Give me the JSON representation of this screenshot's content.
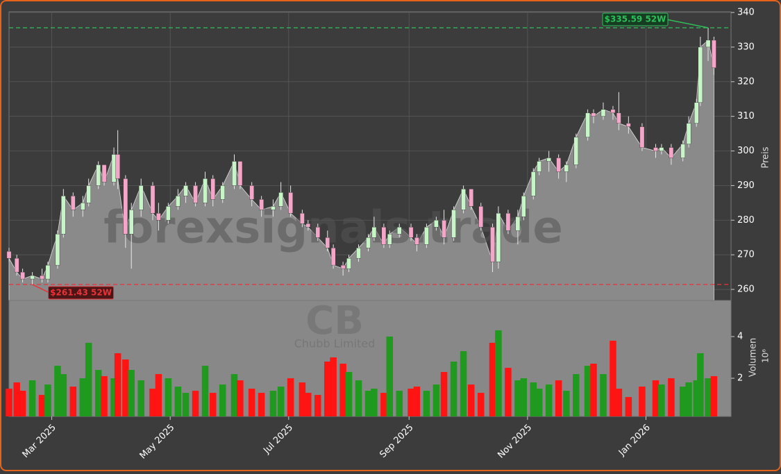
{
  "chart_data": {
    "type": "candlestick",
    "watermark": "forexsignals.trade",
    "symbol": "CB",
    "company": "Chubb Limited",
    "ylabel": "Preis",
    "y2label": "Volumen",
    "y2multiplier": "10⁶",
    "up_color": "#c8f5c8",
    "down_color": "#f4a6c8",
    "volume_up_color": "#1f9a1f",
    "volume_down_color": "#ff1414",
    "grid": true,
    "xlim": [
      "2025-02-07",
      "2026-02-12"
    ],
    "xticks": [
      {
        "value": "2025-03-01",
        "label": "Mar 2025"
      },
      {
        "value": "2025-05-01",
        "label": "May 2025"
      },
      {
        "value": "2025-07-01",
        "label": "Jul 2025"
      },
      {
        "value": "2025-09-01",
        "label": "Sep 2025"
      },
      {
        "value": "2025-11-01",
        "label": "Nov 2025"
      },
      {
        "value": "2026-01-01",
        "label": "Jan 2026"
      }
    ],
    "ylim": [
      256.8,
      340.2
    ],
    "yticks": [
      260,
      270,
      280,
      290,
      300,
      310,
      320,
      330,
      340
    ],
    "y2lim": [
      0.17,
      5.73
    ],
    "y2ticks": [
      2,
      4
    ],
    "annotations": [
      {
        "text": "$335.59 52W",
        "value": 335.59,
        "x": "2026-02-02",
        "color": "#2fbf5a"
      },
      {
        "text": "$261.43 52W",
        "value": 261.43,
        "x": "2025-02-19",
        "color": "#e8333a"
      }
    ],
    "x": [
      "2025-02-07",
      "2025-02-11",
      "2025-02-14",
      "2025-02-19",
      "2025-02-24",
      "2025-02-27",
      "2025-03-04",
      "2025-03-07",
      "2025-03-12",
      "2025-03-17",
      "2025-03-20",
      "2025-03-25",
      "2025-03-28",
      "2025-04-02",
      "2025-04-04",
      "2025-04-08",
      "2025-04-11",
      "2025-04-16",
      "2025-04-22",
      "2025-04-25",
      "2025-04-30",
      "2025-05-05",
      "2025-05-09",
      "2025-05-14",
      "2025-05-19",
      "2025-05-23",
      "2025-05-28",
      "2025-06-03",
      "2025-06-06",
      "2025-06-12",
      "2025-06-17",
      "2025-06-23",
      "2025-06-27",
      "2025-07-02",
      "2025-07-08",
      "2025-07-11",
      "2025-07-16",
      "2025-07-21",
      "2025-07-24",
      "2025-07-29",
      "2025-08-01",
      "2025-08-06",
      "2025-08-11",
      "2025-08-14",
      "2025-08-19",
      "2025-08-22",
      "2025-08-27",
      "2025-09-02",
      "2025-09-05",
      "2025-09-10",
      "2025-09-15",
      "2025-09-19",
      "2025-09-24",
      "2025-09-29",
      "2025-10-03",
      "2025-10-08",
      "2025-10-14",
      "2025-10-17",
      "2025-10-22",
      "2025-10-27",
      "2025-10-30",
      "2025-11-04",
      "2025-11-07",
      "2025-11-12",
      "2025-11-17",
      "2025-11-21",
      "2025-11-26",
      "2025-12-02",
      "2025-12-05",
      "2025-12-10",
      "2025-12-15",
      "2025-12-18",
      "2025-12-23",
      "2025-12-30",
      "2026-01-06",
      "2026-01-09",
      "2026-01-14",
      "2026-01-20",
      "2026-01-23",
      "2026-01-27",
      "2026-01-29",
      "2026-02-02",
      "2026-02-05"
    ],
    "open": [
      271,
      269,
      265,
      263,
      264,
      263,
      267,
      276,
      287,
      283,
      285,
      290,
      296,
      291,
      299,
      292,
      276,
      283,
      290,
      282,
      280,
      284,
      287,
      290,
      285,
      292,
      286,
      290,
      297,
      290,
      286,
      283,
      284,
      288,
      282,
      279,
      278,
      275,
      272,
      267,
      266,
      269,
      272,
      275,
      278,
      273,
      276,
      278,
      275,
      273,
      278,
      280,
      275,
      283,
      289,
      284,
      278,
      268,
      282,
      277,
      281,
      287,
      294,
      297,
      298,
      294,
      296,
      304,
      311,
      310,
      312,
      311,
      308,
      307,
      301,
      300,
      301,
      298,
      302,
      308,
      314,
      330,
      332
    ],
    "high": [
      272,
      270,
      266,
      265,
      266,
      268,
      277,
      289,
      288,
      287,
      292,
      297,
      296,
      301,
      306,
      293,
      285,
      292,
      291,
      285,
      285,
      289,
      291,
      291,
      294,
      293,
      291,
      299,
      297,
      291,
      287,
      286,
      291,
      290,
      283,
      280,
      279,
      277,
      273,
      268,
      270,
      273,
      276,
      281,
      279,
      277,
      279,
      279,
      276,
      279,
      281,
      283,
      284,
      290,
      289,
      285,
      279,
      284,
      283,
      283,
      288,
      295,
      298,
      300,
      299,
      297,
      305,
      312,
      312,
      314,
      313,
      317,
      310,
      308,
      302,
      302,
      302,
      303,
      310,
      315,
      333,
      335.59,
      333
    ],
    "low": [
      268,
      264,
      262,
      261.43,
      262,
      262,
      266,
      275,
      281,
      281,
      284,
      289,
      290,
      290,
      289,
      272,
      266,
      281,
      280,
      277,
      279,
      283,
      285,
      284,
      284,
      284,
      285,
      289,
      289,
      284,
      281,
      281,
      283,
      281,
      278,
      277,
      274,
      271,
      266,
      264,
      265,
      268,
      271,
      274,
      272,
      272,
      275,
      274,
      271,
      272,
      277,
      273,
      274,
      282,
      283,
      277,
      265,
      266,
      276,
      273,
      280,
      286,
      293,
      294,
      292,
      291,
      295,
      303,
      308,
      309,
      309,
      306,
      305,
      300,
      298,
      299,
      296,
      297,
      301,
      307,
      313,
      326,
      322
    ],
    "close": [
      269,
      265,
      263,
      264,
      263,
      267,
      276,
      287,
      283,
      285,
      290,
      296,
      291,
      299,
      292,
      276,
      283,
      290,
      282,
      280,
      284,
      287,
      290,
      285,
      292,
      286,
      290,
      297,
      290,
      286,
      283,
      284,
      288,
      282,
      279,
      278,
      275,
      272,
      267,
      266,
      269,
      272,
      275,
      278,
      273,
      276,
      278,
      275,
      273,
      278,
      280,
      275,
      283,
      289,
      284,
      278,
      268,
      282,
      277,
      281,
      287,
      294,
      297,
      298,
      294,
      296,
      304,
      311,
      310,
      312,
      311,
      308,
      307,
      301,
      300,
      301,
      298,
      302,
      308,
      314,
      330,
      332,
      324
    ],
    "volume": [
      1.5,
      1.8,
      1.4,
      1.9,
      1.2,
      1.7,
      2.6,
      2.2,
      1.6,
      2.0,
      3.7,
      2.4,
      2.1,
      2.0,
      3.2,
      2.9,
      2.4,
      1.9,
      1.5,
      2.2,
      2.0,
      1.6,
      1.3,
      1.4,
      2.6,
      1.3,
      1.7,
      2.2,
      1.9,
      1.5,
      1.3,
      1.4,
      1.6,
      2.0,
      1.8,
      1.3,
      1.2,
      2.8,
      3.0,
      2.7,
      2.3,
      1.9,
      1.4,
      1.5,
      1.3,
      4.0,
      1.4,
      1.5,
      1.6,
      1.4,
      1.7,
      2.3,
      2.8,
      3.3,
      1.7,
      1.3,
      3.7,
      4.3,
      2.5,
      1.9,
      2.0,
      1.8,
      1.5,
      1.7,
      1.9,
      1.4,
      2.2,
      2.6,
      2.7,
      2.2,
      3.8,
      1.5,
      1.1,
      1.6,
      1.9,
      1.7,
      2.0,
      1.6,
      1.8,
      1.9,
      3.2,
      2.0,
      2.1
    ]
  }
}
